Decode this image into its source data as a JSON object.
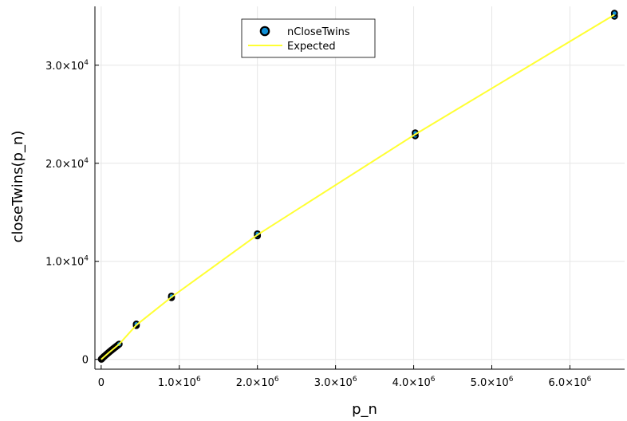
{
  "chart_data": {
    "type": "scatter",
    "title": "",
    "xlabel": "p_n",
    "ylabel": "closeTwins(p_n)",
    "xlim": [
      -80000,
      6700000
    ],
    "ylim": [
      -1000,
      36000
    ],
    "grid": true,
    "legend_position": "top",
    "x_ticks": [
      {
        "value": 0,
        "label": "0",
        "mantissa": "",
        "exp": ""
      },
      {
        "value": 1000000,
        "label": "",
        "mantissa": "1.0×10",
        "exp": "6"
      },
      {
        "value": 2000000,
        "label": "",
        "mantissa": "2.0×10",
        "exp": "6"
      },
      {
        "value": 3000000,
        "label": "",
        "mantissa": "3.0×10",
        "exp": "6"
      },
      {
        "value": 4000000,
        "label": "",
        "mantissa": "4.0×10",
        "exp": "6"
      },
      {
        "value": 5000000,
        "label": "",
        "mantissa": "5.0×10",
        "exp": "6"
      },
      {
        "value": 6000000,
        "label": "",
        "mantissa": "6.0×10",
        "exp": "6"
      }
    ],
    "y_ticks": [
      {
        "value": 0,
        "label": "0",
        "mantissa": "",
        "exp": ""
      },
      {
        "value": 10000,
        "label": "",
        "mantissa": "1.0×10",
        "exp": "4"
      },
      {
        "value": 20000,
        "label": "",
        "mantissa": "2.0×10",
        "exp": "4"
      },
      {
        "value": 30000,
        "label": "",
        "mantissa": "3.0×10",
        "exp": "4"
      }
    ],
    "series": [
      {
        "name": "nCloseTwins",
        "kind": "scatter",
        "color": "#0f8fd6",
        "points": [
          [
            2000,
            15
          ],
          [
            5000,
            40
          ],
          [
            10000,
            85
          ],
          [
            15000,
            120
          ],
          [
            20000,
            160
          ],
          [
            30000,
            235
          ],
          [
            40000,
            310
          ],
          [
            50000,
            380
          ],
          [
            60000,
            450
          ],
          [
            70000,
            525
          ],
          [
            80000,
            590
          ],
          [
            90000,
            660
          ],
          [
            100000,
            730
          ],
          [
            110000,
            795
          ],
          [
            120000,
            860
          ],
          [
            130000,
            925
          ],
          [
            140000,
            990
          ],
          [
            150000,
            1055
          ],
          [
            160000,
            1115
          ],
          [
            170000,
            1180
          ],
          [
            180000,
            1240
          ],
          [
            190000,
            1300
          ],
          [
            200000,
            1365
          ],
          [
            210000,
            1425
          ],
          [
            220000,
            1490
          ],
          [
            230000,
            1550
          ],
          [
            450000,
            3450
          ],
          [
            450000,
            3600
          ],
          [
            900000,
            6300
          ],
          [
            900000,
            6450
          ],
          [
            2000000,
            12600
          ],
          [
            2000000,
            12800
          ],
          [
            4020000,
            22800
          ],
          [
            4020000,
            23100
          ],
          [
            6570000,
            35000
          ],
          [
            6570000,
            35300
          ]
        ]
      },
      {
        "name": "Expected",
        "kind": "line",
        "color": "#ffff33",
        "points": [
          [
            0,
            0
          ],
          [
            100000,
            700
          ],
          [
            230000,
            1550
          ],
          [
            450000,
            3500
          ],
          [
            900000,
            6350
          ],
          [
            2000000,
            12700
          ],
          [
            4020000,
            22950
          ],
          [
            6570000,
            35150
          ]
        ]
      }
    ]
  }
}
